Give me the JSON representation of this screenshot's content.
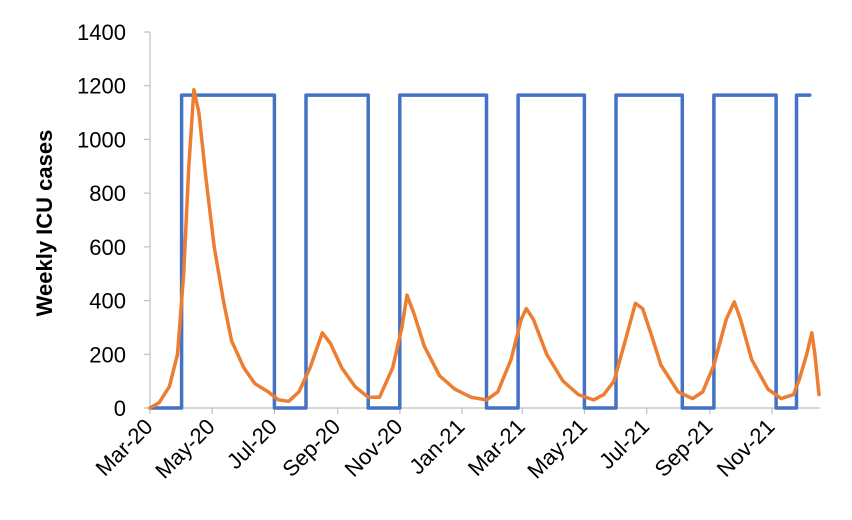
{
  "chart_data": {
    "type": "line",
    "title": "",
    "xlabel": "",
    "ylabel": "Weekly ICU cases",
    "ylim": [
      0,
      1400
    ],
    "y_ticks": [
      0,
      200,
      400,
      600,
      800,
      1000,
      1200,
      1400
    ],
    "x_tick_labels": [
      "Mar-20",
      "May-20",
      "Jul-20",
      "Sep-20",
      "Nov-20",
      "Jan-21",
      "Mar-21",
      "May-21",
      "Jul-21",
      "Sep-21",
      "Nov-21"
    ],
    "x_start": "Mar-20",
    "x_end": "Dec-21",
    "grid": false,
    "legend": "none",
    "colors": {
      "intervention_series": "#4472C4",
      "icu_series": "#ED7D31",
      "axis": "#BFBFBF"
    },
    "series": [
      {
        "values_desc": "on/off intervention level (step)",
        "color_key": "intervention_series",
        "type": "step",
        "points": [
          [
            "2020-03-01",
            0
          ],
          [
            "2020-04-01",
            0
          ],
          [
            "2020-04-01",
            1165
          ],
          [
            "2020-07-01",
            1165
          ],
          [
            "2020-07-01",
            0
          ],
          [
            "2020-08-01",
            0
          ],
          [
            "2020-08-01",
            1165
          ],
          [
            "2020-10-01",
            1165
          ],
          [
            "2020-10-01",
            0
          ],
          [
            "2020-11-01",
            0
          ],
          [
            "2020-11-01",
            1165
          ],
          [
            "2021-01-25",
            1165
          ],
          [
            "2021-01-25",
            0
          ],
          [
            "2021-02-25",
            0
          ],
          [
            "2021-02-25",
            1165
          ],
          [
            "2021-05-01",
            1165
          ],
          [
            "2021-05-01",
            0
          ],
          [
            "2021-06-01",
            0
          ],
          [
            "2021-06-01",
            1165
          ],
          [
            "2021-08-05",
            1165
          ],
          [
            "2021-08-05",
            0
          ],
          [
            "2021-09-05",
            0
          ],
          [
            "2021-09-05",
            1165
          ],
          [
            "2021-11-05",
            1165
          ],
          [
            "2021-11-05",
            0
          ],
          [
            "2021-11-25",
            0
          ],
          [
            "2021-11-25",
            1165
          ],
          [
            "2021-12-08",
            1165
          ]
        ]
      },
      {
        "values_desc": "weekly ICU cases",
        "color_key": "icu_series",
        "type": "line",
        "points": [
          [
            "2020-03-01",
            0
          ],
          [
            "2020-03-10",
            20
          ],
          [
            "2020-03-20",
            80
          ],
          [
            "2020-03-28",
            200
          ],
          [
            "2020-04-03",
            500
          ],
          [
            "2020-04-08",
            900
          ],
          [
            "2020-04-13",
            1185
          ],
          [
            "2020-04-18",
            1100
          ],
          [
            "2020-04-25",
            850
          ],
          [
            "2020-05-03",
            600
          ],
          [
            "2020-05-12",
            400
          ],
          [
            "2020-05-20",
            250
          ],
          [
            "2020-06-01",
            150
          ],
          [
            "2020-06-12",
            90
          ],
          [
            "2020-06-25",
            60
          ],
          [
            "2020-07-05",
            30
          ],
          [
            "2020-07-15",
            25
          ],
          [
            "2020-07-25",
            60
          ],
          [
            "2020-08-05",
            150
          ],
          [
            "2020-08-17",
            280
          ],
          [
            "2020-08-25",
            240
          ],
          [
            "2020-09-05",
            150
          ],
          [
            "2020-09-18",
            80
          ],
          [
            "2020-10-01",
            40
          ],
          [
            "2020-10-12",
            40
          ],
          [
            "2020-10-25",
            150
          ],
          [
            "2020-11-03",
            300
          ],
          [
            "2020-11-08",
            420
          ],
          [
            "2020-11-15",
            350
          ],
          [
            "2020-11-25",
            230
          ],
          [
            "2020-12-10",
            120
          ],
          [
            "2020-12-25",
            70
          ],
          [
            "2021-01-10",
            40
          ],
          [
            "2021-01-25",
            30
          ],
          [
            "2021-02-05",
            60
          ],
          [
            "2021-02-18",
            180
          ],
          [
            "2021-02-28",
            330
          ],
          [
            "2021-03-05",
            370
          ],
          [
            "2021-03-12",
            330
          ],
          [
            "2021-03-25",
            200
          ],
          [
            "2021-04-10",
            100
          ],
          [
            "2021-04-25",
            50
          ],
          [
            "2021-05-10",
            30
          ],
          [
            "2021-05-20",
            50
          ],
          [
            "2021-05-30",
            100
          ],
          [
            "2021-06-10",
            250
          ],
          [
            "2021-06-20",
            390
          ],
          [
            "2021-06-27",
            370
          ],
          [
            "2021-07-05",
            280
          ],
          [
            "2021-07-15",
            160
          ],
          [
            "2021-08-01",
            60
          ],
          [
            "2021-08-15",
            35
          ],
          [
            "2021-08-25",
            60
          ],
          [
            "2021-09-05",
            160
          ],
          [
            "2021-09-17",
            330
          ],
          [
            "2021-09-25",
            395
          ],
          [
            "2021-10-01",
            330
          ],
          [
            "2021-10-12",
            180
          ],
          [
            "2021-10-28",
            70
          ],
          [
            "2021-11-10",
            35
          ],
          [
            "2021-11-22",
            50
          ],
          [
            "2021-11-28",
            110
          ],
          [
            "2021-12-05",
            200
          ],
          [
            "2021-12-10",
            280
          ],
          [
            "2021-12-13",
            200
          ],
          [
            "2021-12-17",
            50
          ]
        ]
      }
    ]
  }
}
